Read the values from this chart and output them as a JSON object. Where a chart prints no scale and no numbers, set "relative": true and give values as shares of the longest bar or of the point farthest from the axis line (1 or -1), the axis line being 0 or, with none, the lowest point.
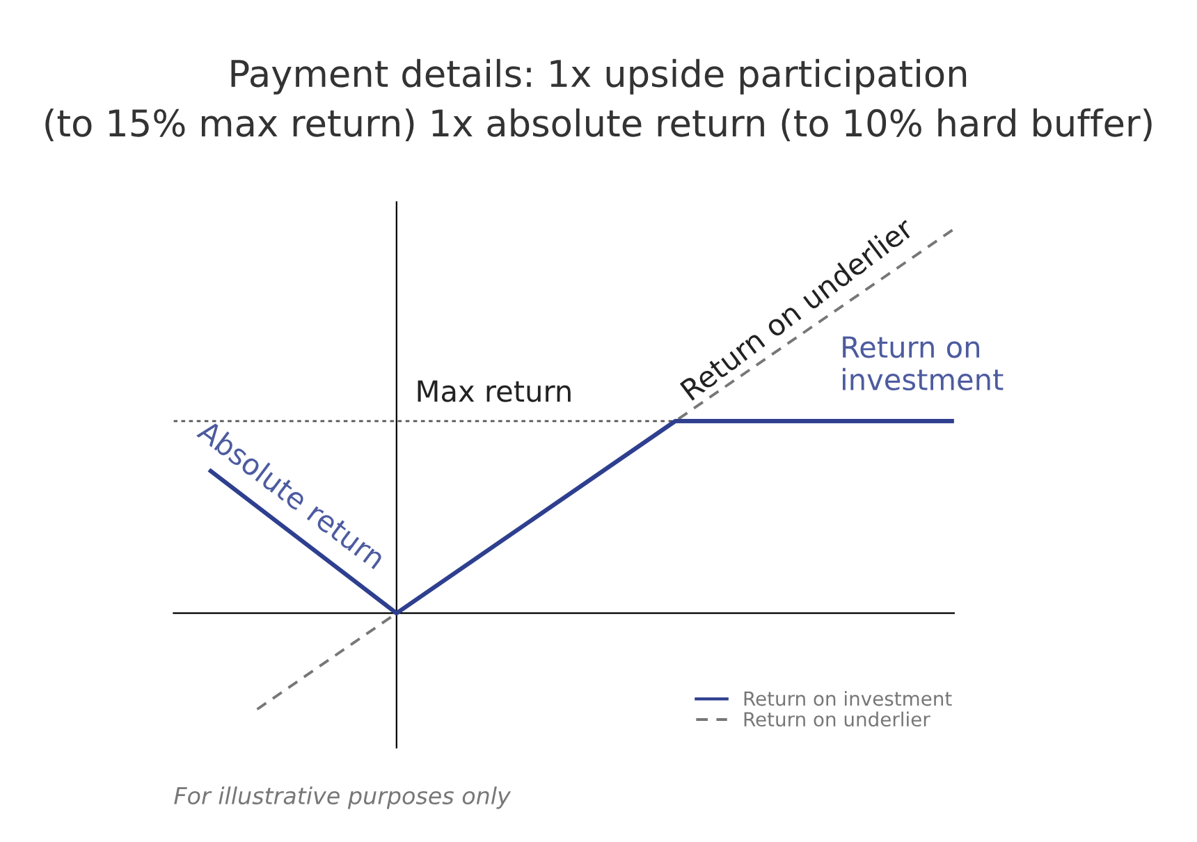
{
  "chart_data": {
    "type": "line",
    "title": "Payment details: 1x upside participation\n(to 15% max return) 1x absolute return (to 10% hard buffer)",
    "relative": true,
    "categories": [
      null,
      null,
      null,
      null,
      null,
      null,
      null,
      null,
      null,
      null,
      null,
      null,
      null,
      null,
      null,
      null,
      null
    ],
    "series": [
      {
        "name": "Return on investment",
        "color": "#2e3f8f",
        "values": [
          0.37,
          null,
          null,
          null,
          0,
          null,
          null,
          null,
          null,
          null,
          0.5,
          null,
          null,
          null,
          null,
          null,
          0.5
        ],
        "line_style": "solid"
      },
      {
        "name": "Return on underlier",
        "color": "#777777",
        "values": [
          null,
          -0.25,
          null,
          null,
          0,
          null,
          null,
          null,
          null,
          null,
          null,
          null,
          null,
          null,
          null,
          null,
          1.0
        ],
        "line_style": "dashed"
      }
    ],
    "ref_lines": [
      {
        "axis": "y",
        "value": 0.5,
        "label": "Max return",
        "color": "#555555",
        "line_style": "dotted"
      }
    ],
    "annotations": [
      "Return on\ninvestment",
      "Return on underlier",
      "Absolute return",
      "For illustrative purposes only"
    ],
    "legend": "bottom right"
  }
}
